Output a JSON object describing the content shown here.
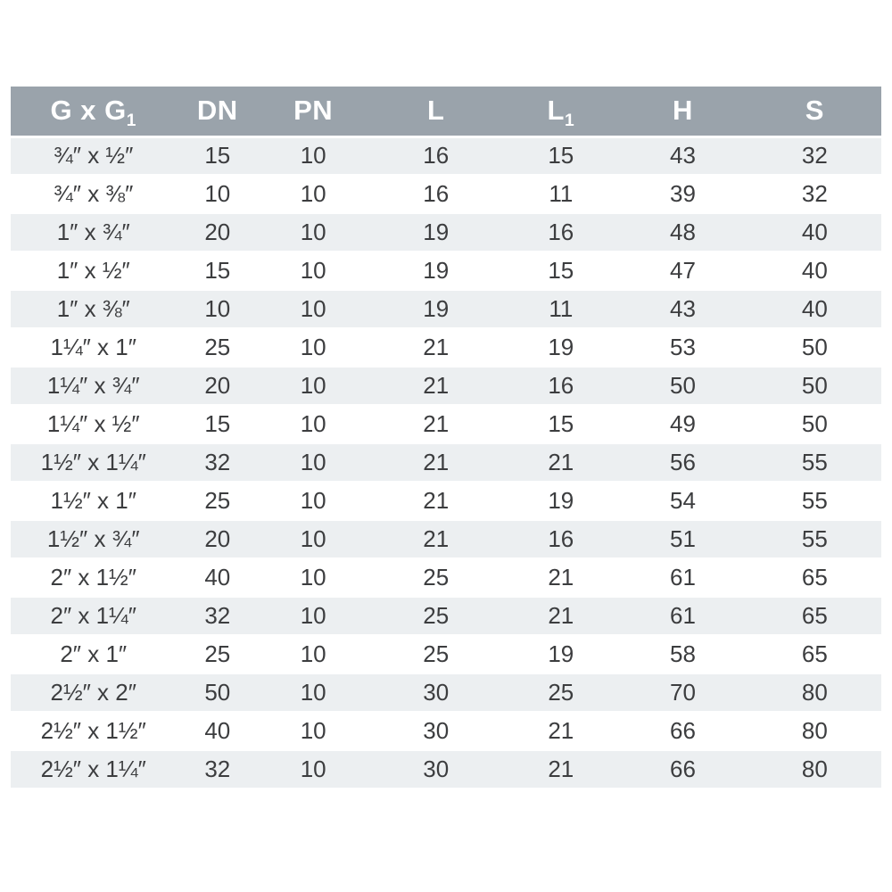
{
  "table": {
    "columns": [
      {
        "text": "G x G",
        "sub": "1"
      },
      {
        "text": "DN",
        "sub": ""
      },
      {
        "text": "PN",
        "sub": ""
      },
      {
        "text": "L",
        "sub": ""
      },
      {
        "text": "L",
        "sub": "1"
      },
      {
        "text": "H",
        "sub": ""
      },
      {
        "text": "S",
        "sub": ""
      }
    ],
    "colors": {
      "header_bg": "#9aa3ab",
      "header_text": "#ffffff",
      "stripe_bg": "#eceff1",
      "row_bg": "#ffffff",
      "body_text": "#3c3d3f",
      "page_bg": "#ffffff"
    }
  },
  "chart_data": {
    "type": "table",
    "title": "",
    "columns": [
      "G x G₁",
      "DN",
      "PN",
      "L",
      "L₁",
      "H",
      "S"
    ],
    "rows": [
      [
        "¾″ x ½″",
        15,
        10,
        16,
        15,
        43,
        32
      ],
      [
        "¾″ x ⅜″",
        10,
        10,
        16,
        11,
        39,
        32
      ],
      [
        "1″ x ¾″",
        20,
        10,
        19,
        16,
        48,
        40
      ],
      [
        "1″ x ½″",
        15,
        10,
        19,
        15,
        47,
        40
      ],
      [
        "1″ x ⅜″",
        10,
        10,
        19,
        11,
        43,
        40
      ],
      [
        "1¼″ x 1″",
        25,
        10,
        21,
        19,
        53,
        50
      ],
      [
        "1¼″ x ¾″",
        20,
        10,
        21,
        16,
        50,
        50
      ],
      [
        "1¼″ x ½″",
        15,
        10,
        21,
        15,
        49,
        50
      ],
      [
        "1½″ x 1¼″",
        32,
        10,
        21,
        21,
        56,
        55
      ],
      [
        "1½″ x 1″",
        25,
        10,
        21,
        19,
        54,
        55
      ],
      [
        "1½″ x ¾″",
        20,
        10,
        21,
        16,
        51,
        55
      ],
      [
        "2″ x 1½″",
        40,
        10,
        25,
        21,
        61,
        65
      ],
      [
        "2″ x 1¼″",
        32,
        10,
        25,
        21,
        61,
        65
      ],
      [
        "2″ x 1″",
        25,
        10,
        25,
        19,
        58,
        65
      ],
      [
        "2½″ x 2″",
        50,
        10,
        30,
        25,
        70,
        80
      ],
      [
        "2½″ x 1½″",
        40,
        10,
        30,
        21,
        66,
        80
      ],
      [
        "2½″ x 1¼″",
        32,
        10,
        30,
        21,
        66,
        80
      ]
    ]
  }
}
